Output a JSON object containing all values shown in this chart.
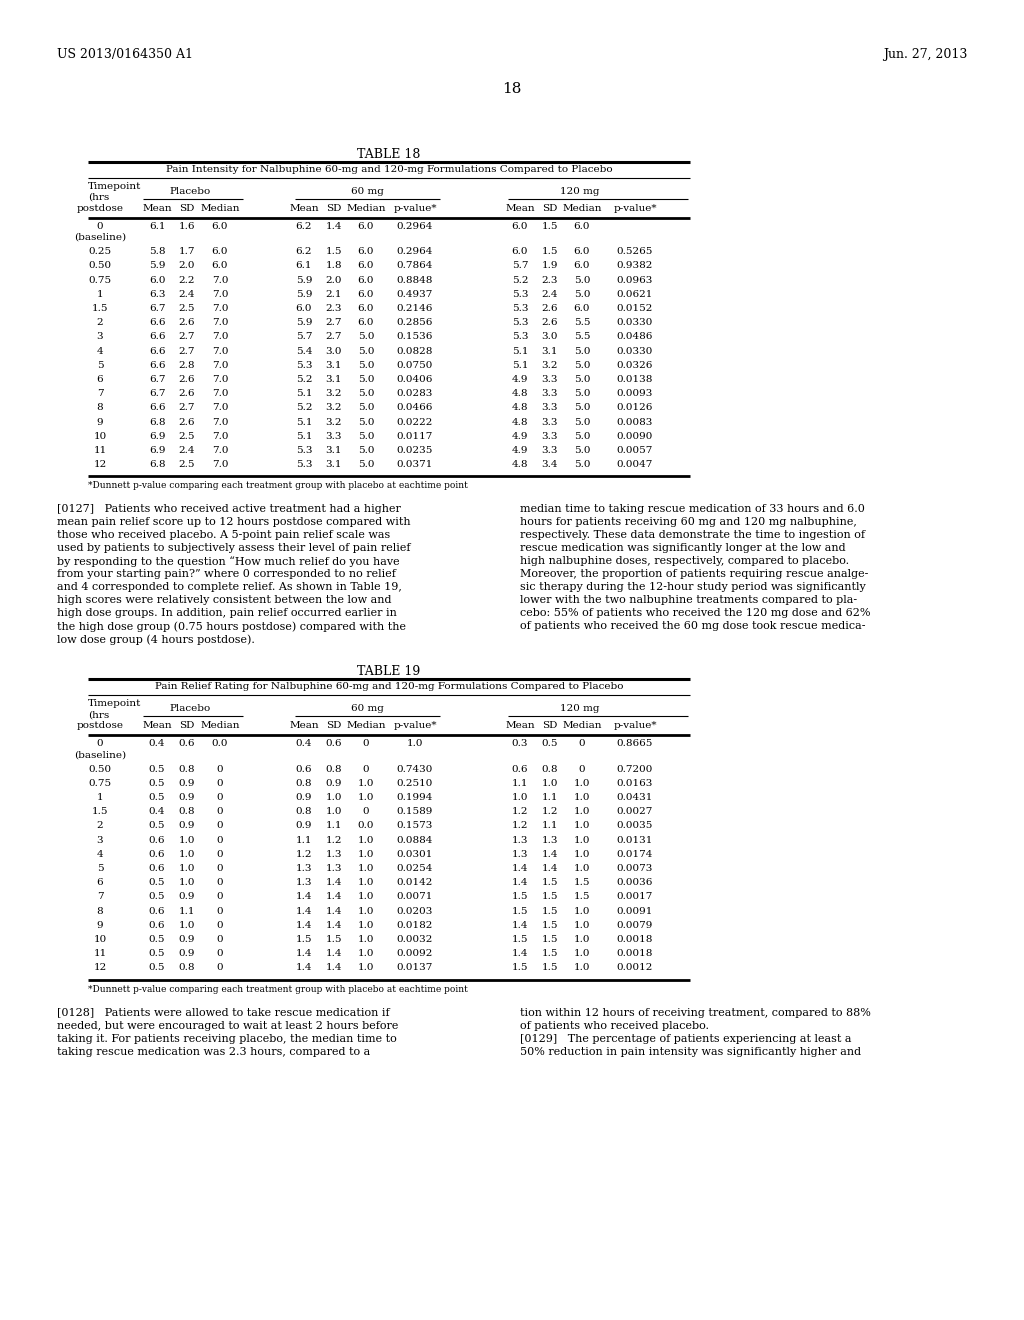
{
  "header_left": "US 2013/0164350 A1",
  "header_right": "Jun. 27, 2013",
  "page_number": "18",
  "table18_title": "TABLE 18",
  "table18_subtitle": "Pain Intensity for Nalbuphine 60-mg and 120-mg Formulations Compared to Placebo",
  "table18_col_headers": [
    "postdose",
    "Mean",
    "SD",
    "Median",
    "Mean",
    "SD",
    "Median",
    "p-value*",
    "Mean",
    "SD",
    "Median",
    "p-value*"
  ],
  "table18_data": [
    [
      "0",
      "(baseline)",
      "6.1",
      "1.6",
      "6.0",
      "6.2",
      "1.4",
      "6.0",
      "0.2964",
      "6.0",
      "1.5",
      "6.0",
      ""
    ],
    [
      "0.25",
      "",
      "5.8",
      "1.7",
      "6.0",
      "6.2",
      "1.5",
      "6.0",
      "0.2964",
      "6.0",
      "1.5",
      "6.0",
      "0.5265"
    ],
    [
      "0.50",
      "",
      "5.9",
      "2.0",
      "6.0",
      "6.1",
      "1.8",
      "6.0",
      "0.7864",
      "5.7",
      "1.9",
      "6.0",
      "0.9382"
    ],
    [
      "0.75",
      "",
      "6.0",
      "2.2",
      "7.0",
      "5.9",
      "2.0",
      "6.0",
      "0.8848",
      "5.2",
      "2.3",
      "5.0",
      "0.0963"
    ],
    [
      "1",
      "",
      "6.3",
      "2.4",
      "7.0",
      "5.9",
      "2.1",
      "6.0",
      "0.4937",
      "5.3",
      "2.4",
      "5.0",
      "0.0621"
    ],
    [
      "1.5",
      "",
      "6.7",
      "2.5",
      "7.0",
      "6.0",
      "2.3",
      "6.0",
      "0.2146",
      "5.3",
      "2.6",
      "6.0",
      "0.0152"
    ],
    [
      "2",
      "",
      "6.6",
      "2.6",
      "7.0",
      "5.9",
      "2.7",
      "6.0",
      "0.2856",
      "5.3",
      "2.6",
      "5.5",
      "0.0330"
    ],
    [
      "3",
      "",
      "6.6",
      "2.7",
      "7.0",
      "5.7",
      "2.7",
      "5.0",
      "0.1536",
      "5.3",
      "3.0",
      "5.5",
      "0.0486"
    ],
    [
      "4",
      "",
      "6.6",
      "2.7",
      "7.0",
      "5.4",
      "3.0",
      "5.0",
      "0.0828",
      "5.1",
      "3.1",
      "5.0",
      "0.0330"
    ],
    [
      "5",
      "",
      "6.6",
      "2.8",
      "7.0",
      "5.3",
      "3.1",
      "5.0",
      "0.0750",
      "5.1",
      "3.2",
      "5.0",
      "0.0326"
    ],
    [
      "6",
      "",
      "6.7",
      "2.6",
      "7.0",
      "5.2",
      "3.1",
      "5.0",
      "0.0406",
      "4.9",
      "3.3",
      "5.0",
      "0.0138"
    ],
    [
      "7",
      "",
      "6.7",
      "2.6",
      "7.0",
      "5.1",
      "3.2",
      "5.0",
      "0.0283",
      "4.8",
      "3.3",
      "5.0",
      "0.0093"
    ],
    [
      "8",
      "",
      "6.6",
      "2.7",
      "7.0",
      "5.2",
      "3.2",
      "5.0",
      "0.0466",
      "4.8",
      "3.3",
      "5.0",
      "0.0126"
    ],
    [
      "9",
      "",
      "6.8",
      "2.6",
      "7.0",
      "5.1",
      "3.2",
      "5.0",
      "0.0222",
      "4.8",
      "3.3",
      "5.0",
      "0.0083"
    ],
    [
      "10",
      "",
      "6.9",
      "2.5",
      "7.0",
      "5.1",
      "3.3",
      "5.0",
      "0.0117",
      "4.9",
      "3.3",
      "5.0",
      "0.0090"
    ],
    [
      "11",
      "",
      "6.9",
      "2.4",
      "7.0",
      "5.3",
      "3.1",
      "5.0",
      "0.0235",
      "4.9",
      "3.3",
      "5.0",
      "0.0057"
    ],
    [
      "12",
      "",
      "6.8",
      "2.5",
      "7.0",
      "5.3",
      "3.1",
      "5.0",
      "0.0371",
      "4.8",
      "3.4",
      "5.0",
      "0.0047"
    ]
  ],
  "table18_footnote": "*Dunnett p-value comparing each treatment group with placebo at eachtime point",
  "para127_left": "[0127]   Patients who received active treatment had a higher\nmean pain relief score up to 12 hours postdose compared with\nthose who received placebo. A 5-point pain relief scale was\nused by patients to subjectively assess their level of pain relief\nby responding to the question “How much relief do you have\nfrom your starting pain?” where 0 corresponded to no relief\nand 4 corresponded to complete relief. As shown in Table 19,\nhigh scores were relatively consistent between the low and\nhigh dose groups. In addition, pain relief occurred earlier in\nthe high dose group (0.75 hours postdose) compared with the\nlow dose group (4 hours postdose).",
  "para127_right": "median time to taking rescue medication of 33 hours and 6.0\nhours for patients receiving 60 mg and 120 mg nalbuphine,\nrespectively. These data demonstrate the time to ingestion of\nrescue medication was significantly longer at the low and\nhigh nalbuphine doses, respectively, compared to placebo.\nMoreover, the proportion of patients requiring rescue analge-\nsic therapy during the 12-hour study period was significantly\nlower with the two nalbuphine treatments compared to pla-\ncebo: 55% of patients who received the 120 mg dose and 62%\nof patients who received the 60 mg dose took rescue medica-",
  "table19_title": "TABLE 19",
  "table19_subtitle": "Pain Relief Rating for Nalbuphine 60-mg and 120-mg Formulations Compared to Placebo",
  "table19_data": [
    [
      "0",
      "(baseline)",
      "0.4",
      "0.6",
      "0.0",
      "0.4",
      "0.6",
      "0",
      "1.0",
      "0.3",
      "0.5",
      "0",
      "0.8665"
    ],
    [
      "0.50",
      "",
      "0.5",
      "0.8",
      "0",
      "0.6",
      "0.8",
      "0",
      "0.7430",
      "0.6",
      "0.8",
      "0",
      "0.7200"
    ],
    [
      "0.75",
      "",
      "0.5",
      "0.9",
      "0",
      "0.8",
      "0.9",
      "1.0",
      "0.2510",
      "1.1",
      "1.0",
      "1.0",
      "0.0163"
    ],
    [
      "1",
      "",
      "0.5",
      "0.9",
      "0",
      "0.9",
      "1.0",
      "1.0",
      "0.1994",
      "1.0",
      "1.1",
      "1.0",
      "0.0431"
    ],
    [
      "1.5",
      "",
      "0.4",
      "0.8",
      "0",
      "0.8",
      "1.0",
      "0",
      "0.1589",
      "1.2",
      "1.2",
      "1.0",
      "0.0027"
    ],
    [
      "2",
      "",
      "0.5",
      "0.9",
      "0",
      "0.9",
      "1.1",
      "0.0",
      "0.1573",
      "1.2",
      "1.1",
      "1.0",
      "0.0035"
    ],
    [
      "3",
      "",
      "0.6",
      "1.0",
      "0",
      "1.1",
      "1.2",
      "1.0",
      "0.0884",
      "1.3",
      "1.3",
      "1.0",
      "0.0131"
    ],
    [
      "4",
      "",
      "0.6",
      "1.0",
      "0",
      "1.2",
      "1.3",
      "1.0",
      "0.0301",
      "1.3",
      "1.4",
      "1.0",
      "0.0174"
    ],
    [
      "5",
      "",
      "0.6",
      "1.0",
      "0",
      "1.3",
      "1.3",
      "1.0",
      "0.0254",
      "1.4",
      "1.4",
      "1.0",
      "0.0073"
    ],
    [
      "6",
      "",
      "0.5",
      "1.0",
      "0",
      "1.3",
      "1.4",
      "1.0",
      "0.0142",
      "1.4",
      "1.5",
      "1.5",
      "0.0036"
    ],
    [
      "7",
      "",
      "0.5",
      "0.9",
      "0",
      "1.4",
      "1.4",
      "1.0",
      "0.0071",
      "1.5",
      "1.5",
      "1.5",
      "0.0017"
    ],
    [
      "8",
      "",
      "0.6",
      "1.1",
      "0",
      "1.4",
      "1.4",
      "1.0",
      "0.0203",
      "1.5",
      "1.5",
      "1.0",
      "0.0091"
    ],
    [
      "9",
      "",
      "0.6",
      "1.0",
      "0",
      "1.4",
      "1.4",
      "1.0",
      "0.0182",
      "1.4",
      "1.5",
      "1.0",
      "0.0079"
    ],
    [
      "10",
      "",
      "0.5",
      "0.9",
      "0",
      "1.5",
      "1.5",
      "1.0",
      "0.0032",
      "1.5",
      "1.5",
      "1.0",
      "0.0018"
    ],
    [
      "11",
      "",
      "0.5",
      "0.9",
      "0",
      "1.4",
      "1.4",
      "1.0",
      "0.0092",
      "1.4",
      "1.5",
      "1.0",
      "0.0018"
    ],
    [
      "12",
      "",
      "0.5",
      "0.8",
      "0",
      "1.4",
      "1.4",
      "1.0",
      "0.0137",
      "1.5",
      "1.5",
      "1.0",
      "0.0012"
    ]
  ],
  "table19_footnote": "*Dunnett p-value comparing each treatment group with placebo at eachtime point",
  "para128_left": "[0128]   Patients were allowed to take rescue medication if\nneeded, but were encouraged to wait at least 2 hours before\ntaking it. For patients receiving placebo, the median time to\ntaking rescue medication was 2.3 hours, compared to a",
  "para128_right": "tion within 12 hours of receiving treatment, compared to 88%\nof patients who received placebo.\n[0129]   The percentage of patients experiencing at least a\n50% reduction in pain intensity was significantly higher and"
}
